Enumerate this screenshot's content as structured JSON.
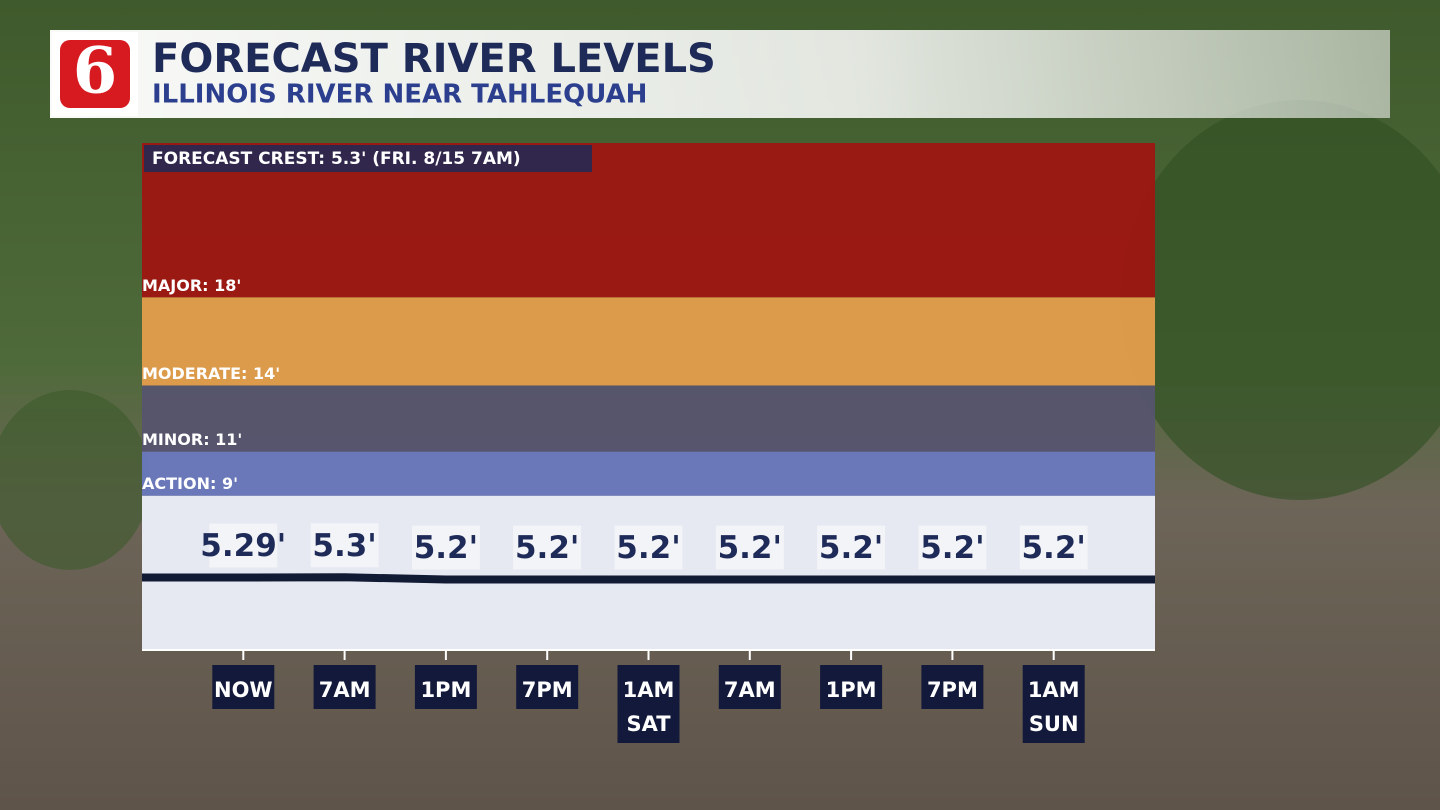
{
  "header": {
    "logo": "6",
    "title": "FORECAST RIVER LEVELS",
    "subtitle": "ILLINOIS RIVER NEAR TAHLEQUAH"
  },
  "chart_data": {
    "type": "line",
    "annotation": "FORECAST CREST: 5.3' (FRI. 8/15 7AM)",
    "categories": [
      [
        "NOW"
      ],
      [
        "7AM"
      ],
      [
        "1PM"
      ],
      [
        "7PM"
      ],
      [
        "1AM",
        "SAT"
      ],
      [
        "7AM"
      ],
      [
        "1PM"
      ],
      [
        "7PM"
      ],
      [
        "1AM",
        "SUN"
      ]
    ],
    "series": [
      {
        "color": "#121b34",
        "values": [
          5.29,
          5.3,
          5.2,
          5.2,
          5.2,
          5.2,
          5.2,
          5.2,
          5.2
        ],
        "value_labels": [
          "5.29'",
          "5.3'",
          "5.2'",
          "5.2'",
          "5.2'",
          "5.2'",
          "5.2'",
          "5.2'",
          "5.2'"
        ]
      }
    ],
    "thresholds": [
      {
        "label": "ACTION: 9'",
        "value": 9,
        "color": "#6a79c2"
      },
      {
        "label": "MINOR: 11'",
        "value": 11,
        "color": "#565470"
      },
      {
        "label": "MODERATE: 14'",
        "value": 14,
        "color": "#e8a04c"
      },
      {
        "label": "MAJOR: 18'",
        "value": 18,
        "color": "#a11410"
      }
    ],
    "below_color": "#e6e8f2",
    "ylim": [
      2,
      25
    ]
  }
}
